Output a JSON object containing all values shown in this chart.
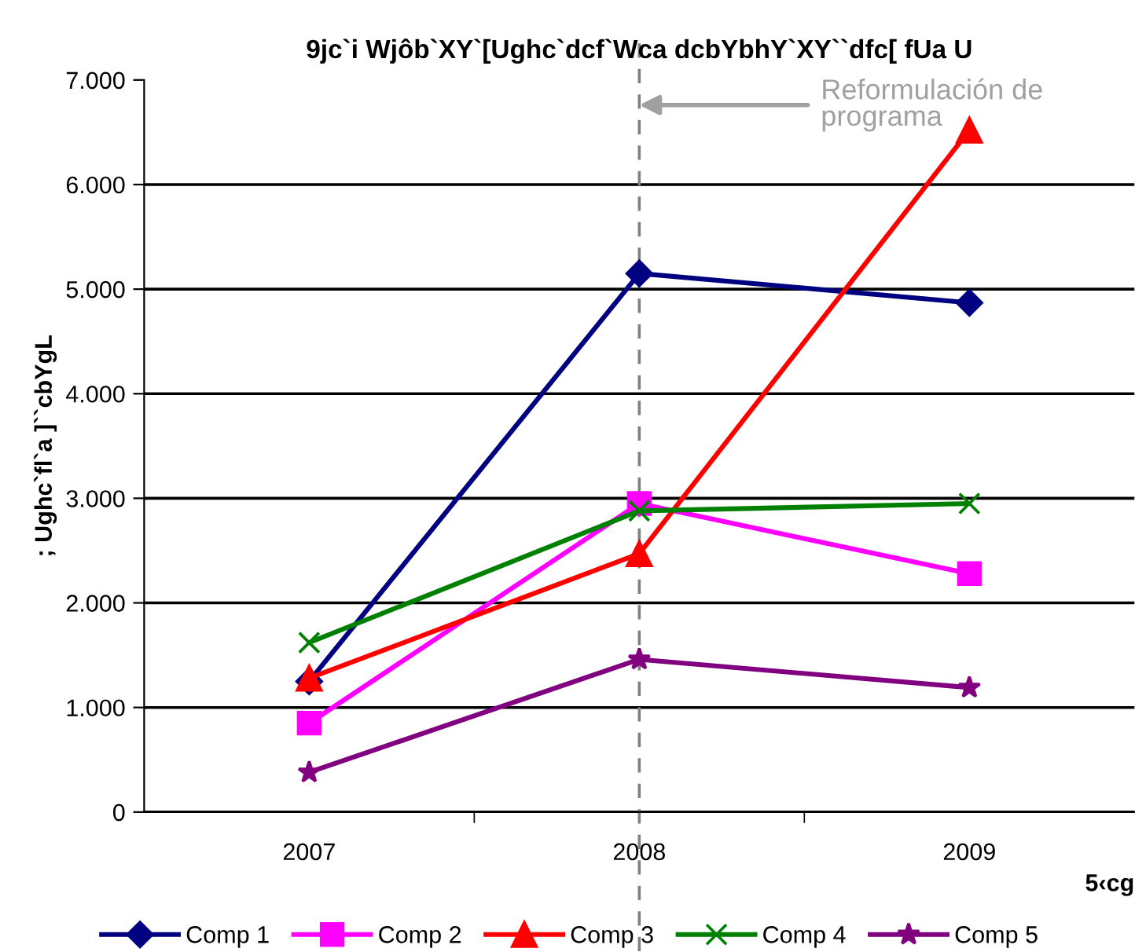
{
  "chart_data": {
    "type": "line",
    "title": "9jc`i Wjôb`XY`[Ughc`dcf`Wca dcbYbhY`XY``dfc[ fUa U",
    "xlabel": "5‹cg",
    "ylabel": "; Ughc`fl`a ]``cbYgL",
    "categories": [
      "2007",
      "2008",
      "2009"
    ],
    "series": [
      {
        "name": "Comp 1",
        "color": "#000080",
        "marker": "diamond",
        "values": [
          1250,
          5150,
          4870
        ]
      },
      {
        "name": "Comp 2",
        "color": "#ff00ff",
        "marker": "square",
        "values": [
          850,
          2950,
          2280
        ]
      },
      {
        "name": "Comp 3",
        "color": "#ff0000",
        "marker": "triangle",
        "values": [
          1280,
          2470,
          6520
        ]
      },
      {
        "name": "Comp 4",
        "color": "#008000",
        "marker": "cross",
        "values": [
          1620,
          2880,
          2950
        ]
      },
      {
        "name": "Comp 5",
        "color": "#800080",
        "marker": "star",
        "values": [
          380,
          1460,
          1190
        ]
      }
    ],
    "ylim": [
      0,
      7000
    ],
    "yticks": [
      0,
      {
        "value": 1000,
        "label": "1.000"
      },
      {
        "value": 2000,
        "label": "2.000"
      },
      {
        "value": 3000,
        "label": "3.000"
      },
      {
        "value": 4000,
        "label": "4.000"
      },
      {
        "value": 5000,
        "label": "5.000"
      },
      {
        "value": 6000,
        "label": "6.000"
      },
      {
        "value": 7000,
        "label": "7.000"
      }
    ],
    "grid": "y",
    "legend": "bottom",
    "ref_lines": [
      {
        "axis": "x",
        "value": "2008",
        "color": "#808080",
        "line_style": "dashed"
      }
    ],
    "annotations": [
      {
        "text": "Reformulación de programa",
        "x": "2008",
        "y": 6760
      }
    ]
  }
}
